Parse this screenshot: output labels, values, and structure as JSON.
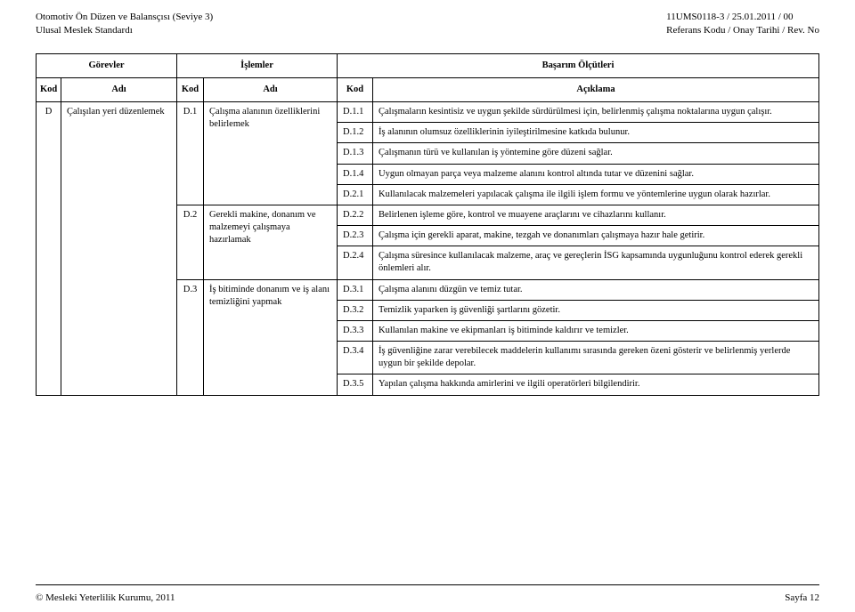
{
  "header": {
    "left_line1": "Otomotiv Ön Düzen ve Balansçısı (Seviye 3)",
    "left_line2": "Ulusal Meslek Standardı",
    "right_line1": "11UMS0118-3 / 25.01.2011 /    00",
    "right_line2": "Referans Kodu / Onay Tarihi / Rev. No"
  },
  "table": {
    "top_headers": {
      "gorevler": "Görevler",
      "islemler": "İşlemler",
      "basarim": "Başarım Ölçütleri"
    },
    "sub_headers": {
      "kod": "Kod",
      "adi": "Adı",
      "aciklama": "Açıklama"
    },
    "row_code": "D",
    "row_name": "Çalışılan yeri düzenlemek",
    "ops": [
      {
        "code": "D.1",
        "name": "Çalışma alanının özelliklerini belirlemek"
      },
      {
        "code": "D.2",
        "name": "Gerekli makine, donanım ve malzemeyi çalışmaya hazırlamak"
      },
      {
        "code": "D.3",
        "name": "İş bitiminde donanım ve iş alanı temizliğini yapmak"
      }
    ],
    "criteria": [
      {
        "code": "D.1.1",
        "text": "Çalışmaların kesintisiz ve uygun şekilde sürdürülmesi için, belirlenmiş çalışma noktalarına uygun çalışır."
      },
      {
        "code": "D.1.2",
        "text": "İş alanının olumsuz özelliklerinin iyileştirilmesine katkıda bulunur."
      },
      {
        "code": "D.1.3",
        "text": "Çalışmanın türü ve kullanılan iş yöntemine göre düzeni sağlar."
      },
      {
        "code": "D.1.4",
        "text": "Uygun olmayan parça veya malzeme alanını kontrol altında tutar ve düzenini sağlar."
      },
      {
        "code": "D.2.1",
        "text": "Kullanılacak malzemeleri yapılacak çalışma ile ilgili işlem formu ve yöntemlerine uygun olarak hazırlar."
      },
      {
        "code": "D.2.2",
        "text": "Belirlenen işleme göre, kontrol ve muayene araçlarını ve cihazlarını kullanır."
      },
      {
        "code": "D.2.3",
        "text": "Çalışma için gerekli aparat, makine, tezgah ve donanımları çalışmaya hazır hale getirir."
      },
      {
        "code": "D.2.4",
        "text": "Çalışma süresince kullanılacak malzeme, araç ve gereçlerin İSG kapsamında uygunluğunu kontrol ederek gerekli önlemleri alır."
      },
      {
        "code": "D.3.1",
        "text": "Çalışma alanını düzgün ve temiz tutar."
      },
      {
        "code": "D.3.2",
        "text": "Temizlik yaparken iş güvenliği şartlarını gözetir."
      },
      {
        "code": "D.3.3",
        "text": "Kullanılan makine ve ekipmanları iş bitiminde kaldırır ve temizler."
      },
      {
        "code": "D.3.4",
        "text": "İş güvenliğine zarar verebilecek maddelerin kullanımı sırasında gereken özeni gösterir ve belirlenmiş yerlerde uygun bir şekilde depolar."
      },
      {
        "code": "D.3.5",
        "text": "Yapılan çalışma hakkında amirlerini ve ilgili operatörleri bilgilendirir."
      }
    ]
  },
  "footer": {
    "left": "© Mesleki Yeterlilik Kurumu, 2011",
    "right": "Sayfa 12"
  }
}
